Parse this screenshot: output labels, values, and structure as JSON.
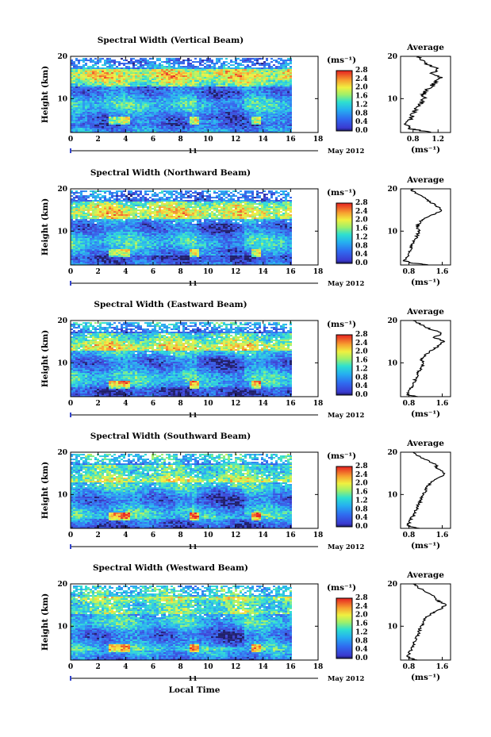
{
  "chart_data": [
    {
      "type": "heatmap",
      "title": "Spectral Width (Vertical Beam)",
      "ylabel": "Height (km)",
      "x_ticks": [
        "0",
        "2",
        "4",
        "6",
        "8",
        "10",
        "12",
        "14",
        "16",
        "18"
      ],
      "y_ticks": [
        "10",
        "20"
      ],
      "xlim": [
        0,
        18
      ],
      "ylim": [
        2,
        20
      ],
      "date_left": "11",
      "date_right": "May 2012",
      "colorbar": {
        "unit": "(ms⁻¹)",
        "ticks": [
          "2.8",
          "2.4",
          "2.0",
          "1.6",
          "1.2",
          "0.8",
          "0.4",
          "0.0"
        ],
        "range": [
          0.0,
          2.8
        ]
      },
      "average": {
        "title": "Average",
        "xlabel": "(ms⁻¹)",
        "x_ticks": [
          "0.8",
          "1.2"
        ],
        "xlim": [
          0.6,
          1.4
        ],
        "profile": [
          [
            1.1,
            2
          ],
          [
            0.9,
            2.5
          ],
          [
            0.72,
            3
          ],
          [
            0.7,
            4
          ],
          [
            0.75,
            5
          ],
          [
            0.78,
            6
          ],
          [
            0.82,
            7
          ],
          [
            0.88,
            8
          ],
          [
            0.93,
            9
          ],
          [
            0.98,
            10
          ],
          [
            0.97,
            11
          ],
          [
            1.0,
            12
          ],
          [
            1.1,
            13
          ],
          [
            1.15,
            14
          ],
          [
            1.25,
            15
          ],
          [
            1.1,
            16
          ],
          [
            1.2,
            17
          ],
          [
            1.05,
            18
          ],
          [
            0.95,
            19
          ],
          [
            0.9,
            20
          ]
        ]
      }
    },
    {
      "type": "heatmap",
      "title": "Spectral Width (Northward Beam)",
      "ylabel": "Height (km)",
      "x_ticks": [
        "0",
        "2",
        "4",
        "6",
        "8",
        "10",
        "12",
        "14",
        "16",
        "18"
      ],
      "y_ticks": [
        "10",
        "20"
      ],
      "xlim": [
        0,
        18
      ],
      "ylim": [
        2,
        20
      ],
      "date_left": "11",
      "date_right": "May 2012",
      "colorbar": {
        "unit": "(ms⁻¹)",
        "ticks": [
          "2.8",
          "2.4",
          "2.0",
          "1.6",
          "1.2",
          "0.8",
          "0.4",
          "0.0"
        ],
        "range": [
          0.0,
          2.8
        ]
      },
      "average": {
        "title": "Average",
        "xlabel": "(ms⁻¹)",
        "x_ticks": [
          "0.8",
          "1.6"
        ],
        "xlim": [
          0.6,
          1.8
        ],
        "profile": [
          [
            1.3,
            2
          ],
          [
            0.85,
            2.5
          ],
          [
            0.7,
            3
          ],
          [
            0.75,
            4
          ],
          [
            0.8,
            5
          ],
          [
            0.85,
            6
          ],
          [
            0.9,
            7
          ],
          [
            0.95,
            8
          ],
          [
            1.0,
            9
          ],
          [
            1.05,
            10
          ],
          [
            1.0,
            11
          ],
          [
            1.05,
            12
          ],
          [
            1.2,
            13
          ],
          [
            1.4,
            14
          ],
          [
            1.6,
            15
          ],
          [
            1.45,
            16
          ],
          [
            1.3,
            17
          ],
          [
            1.15,
            18
          ],
          [
            0.95,
            19
          ],
          [
            0.85,
            20
          ]
        ]
      }
    },
    {
      "type": "heatmap",
      "title": "Spectral Width (Eastward Beam)",
      "ylabel": "Height (km)",
      "x_ticks": [
        "0",
        "2",
        "4",
        "6",
        "8",
        "10",
        "12",
        "14",
        "16",
        "18"
      ],
      "y_ticks": [
        "10",
        "20"
      ],
      "xlim": [
        0,
        18
      ],
      "ylim": [
        2,
        20
      ],
      "date_left": "11",
      "date_right": "May 2012",
      "colorbar": {
        "unit": "(ms⁻¹)",
        "ticks": [
          "2.8",
          "2.4",
          "2.0",
          "1.6",
          "1.2",
          "0.8",
          "0.4",
          "0.0"
        ],
        "range": [
          0.0,
          2.8
        ]
      },
      "average": {
        "title": "Average",
        "xlabel": "(ms⁻¹)",
        "x_ticks": [
          "0.8",
          "1.6"
        ],
        "xlim": [
          0.6,
          1.8
        ],
        "profile": [
          [
            1.0,
            2
          ],
          [
            0.75,
            2.5
          ],
          [
            0.8,
            3
          ],
          [
            0.85,
            4
          ],
          [
            0.9,
            5
          ],
          [
            0.95,
            6
          ],
          [
            1.0,
            7
          ],
          [
            1.05,
            8
          ],
          [
            1.1,
            9
          ],
          [
            1.15,
            10
          ],
          [
            1.1,
            11
          ],
          [
            1.2,
            12
          ],
          [
            1.35,
            13
          ],
          [
            1.5,
            14
          ],
          [
            1.65,
            15
          ],
          [
            1.4,
            16
          ],
          [
            1.6,
            17
          ],
          [
            1.3,
            18
          ],
          [
            1.1,
            19
          ],
          [
            0.9,
            20
          ]
        ]
      }
    },
    {
      "type": "heatmap",
      "title": "Spectral Width (Southward Beam)",
      "ylabel": "Height (km)",
      "x_ticks": [
        "0",
        "2",
        "4",
        "6",
        "8",
        "10",
        "12",
        "14",
        "16",
        "18"
      ],
      "y_ticks": [
        "10",
        "20"
      ],
      "xlim": [
        0,
        18
      ],
      "ylim": [
        2,
        20
      ],
      "date_left": "11",
      "date_right": "May 2012",
      "colorbar": {
        "unit": "(ms⁻¹)",
        "ticks": [
          "2.8",
          "2.4",
          "2.0",
          "1.6",
          "1.2",
          "0.8",
          "0.4",
          "0.0"
        ],
        "range": [
          0.0,
          2.8
        ]
      },
      "average": {
        "title": "Average",
        "xlabel": "(ms⁻¹)",
        "x_ticks": [
          "0.8",
          "1.6"
        ],
        "xlim": [
          0.6,
          1.8
        ],
        "profile": [
          [
            1.05,
            2
          ],
          [
            0.8,
            2.5
          ],
          [
            0.78,
            3
          ],
          [
            0.85,
            4
          ],
          [
            0.9,
            5
          ],
          [
            0.95,
            6
          ],
          [
            1.0,
            7
          ],
          [
            1.05,
            8
          ],
          [
            1.1,
            9
          ],
          [
            1.15,
            10
          ],
          [
            1.2,
            11
          ],
          [
            1.25,
            12
          ],
          [
            1.35,
            13
          ],
          [
            1.55,
            14
          ],
          [
            1.65,
            15
          ],
          [
            1.5,
            16
          ],
          [
            1.45,
            17
          ],
          [
            1.25,
            18
          ],
          [
            1.05,
            19
          ],
          [
            0.9,
            20
          ]
        ]
      }
    },
    {
      "type": "heatmap",
      "title": "Spectral Width (Westward Beam)",
      "ylabel": "Height (km)",
      "x_ticks": [
        "0",
        "2",
        "4",
        "6",
        "8",
        "10",
        "12",
        "14",
        "16",
        "18"
      ],
      "y_ticks": [
        "10",
        "20"
      ],
      "xlim": [
        0,
        18
      ],
      "ylim": [
        2,
        20
      ],
      "date_left": "11",
      "date_right": "May 2012",
      "xlabel": "Local Time",
      "colorbar": {
        "unit": "(ms⁻¹)",
        "ticks": [
          "2.8",
          "2.4",
          "2.0",
          "1.6",
          "1.2",
          "0.8",
          "0.4",
          "0.0"
        ],
        "range": [
          0.0,
          2.8
        ]
      },
      "average": {
        "title": "Average",
        "xlabel": "(ms⁻¹)",
        "x_ticks": [
          "0.8",
          "1.6"
        ],
        "xlim": [
          0.6,
          1.8
        ],
        "profile": [
          [
            1.0,
            2
          ],
          [
            0.8,
            2.5
          ],
          [
            0.78,
            3
          ],
          [
            0.82,
            4
          ],
          [
            0.88,
            5
          ],
          [
            0.92,
            6
          ],
          [
            0.98,
            7
          ],
          [
            1.02,
            8
          ],
          [
            1.05,
            9
          ],
          [
            1.1,
            10
          ],
          [
            1.15,
            11
          ],
          [
            1.2,
            12
          ],
          [
            1.35,
            13
          ],
          [
            1.55,
            14
          ],
          [
            1.7,
            15
          ],
          [
            1.5,
            16
          ],
          [
            1.4,
            17
          ],
          [
            1.25,
            18
          ],
          [
            1.05,
            19
          ],
          [
            0.9,
            20
          ]
        ]
      }
    }
  ]
}
